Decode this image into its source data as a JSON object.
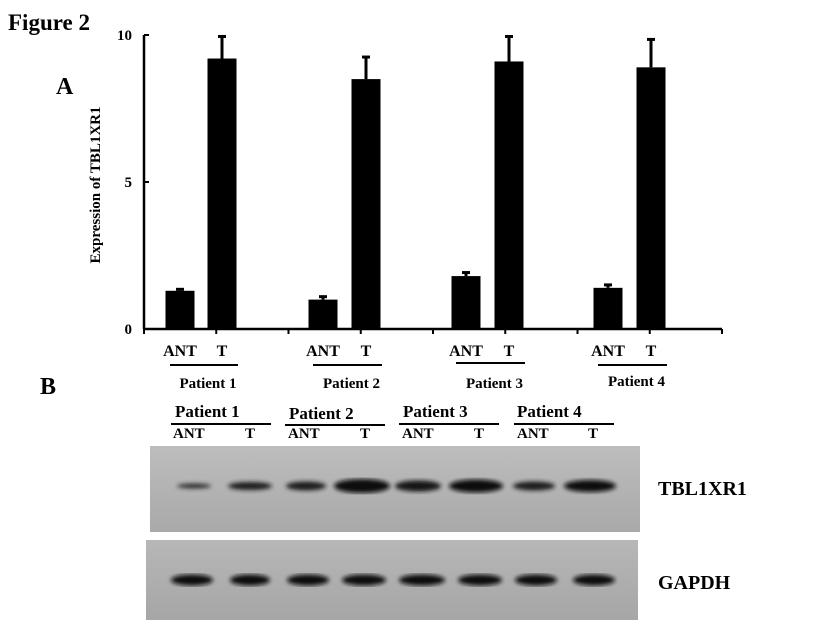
{
  "figure_title": "Figure 2",
  "panel_a_label": "A",
  "panel_b_label": "B",
  "chart_data": {
    "type": "bar",
    "title": "",
    "xlabel": "",
    "ylabel": "Expression of TBL1XR1",
    "ylim": [
      0,
      10
    ],
    "yticks": [
      0,
      5,
      10
    ],
    "categories": [
      "ANT",
      "T",
      "ANT",
      "T",
      "ANT",
      "T",
      "ANT",
      "T"
    ],
    "groups": [
      "Patient 1",
      "Patient 2",
      "Patient 3",
      "Patient 4"
    ],
    "values": [
      1.3,
      9.2,
      1.0,
      8.5,
      1.8,
      9.1,
      1.4,
      8.9
    ],
    "errors": [
      0.05,
      0.75,
      0.1,
      0.75,
      0.12,
      0.85,
      0.1,
      0.95
    ],
    "bar_color": "#000000",
    "grid": false
  },
  "blot": {
    "patients": [
      "Patient 1",
      "Patient 2",
      "Patient 3",
      "Patient 4"
    ],
    "lanes": [
      "ANT",
      "T"
    ],
    "bands": [
      "TBL1XR1",
      "GAPDH"
    ]
  }
}
